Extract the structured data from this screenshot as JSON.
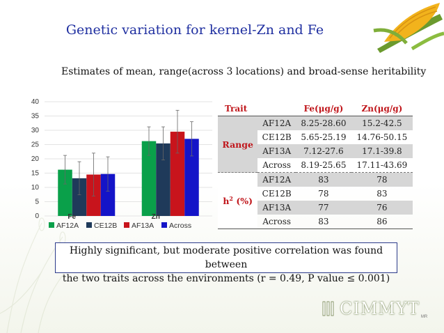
{
  "title": "Genetic variation for kernel-Zn and Fe",
  "subtitle": "Estimates of mean, range(across 3 locations) and broad-sense  heritability",
  "chart_data": {
    "type": "bar",
    "categories": [
      "Fe",
      "Zn"
    ],
    "series": [
      {
        "name": "AF12A",
        "color": "#0aa04a",
        "values": [
          16.2,
          26.2
        ],
        "error": [
          5.0,
          5.0
        ]
      },
      {
        "name": "CE12B",
        "color": "#1f3a5a",
        "values": [
          13.2,
          25.4
        ],
        "error": [
          5.8,
          5.8
        ]
      },
      {
        "name": "AF13A",
        "color": "#c8141c",
        "values": [
          14.5,
          29.5
        ],
        "error": [
          7.5,
          7.5
        ]
      },
      {
        "name": "Across",
        "color": "#1414c8",
        "values": [
          14.7,
          27.0
        ],
        "error": [
          6.0,
          6.0
        ]
      }
    ],
    "ylim": [
      0,
      40
    ],
    "yticks": [
      "0",
      "5",
      "10",
      "15",
      "20",
      "25",
      "30",
      "35",
      "40"
    ],
    "grid": true,
    "legend_position": "bottom"
  },
  "table": {
    "header": {
      "trait": "Trait",
      "fe": "Fe(μg/g)",
      "zn": "Zn(μg/g)"
    },
    "sections": [
      {
        "label": "Range",
        "rows": [
          {
            "loc": "AF12A",
            "fe": "8.25-28.60",
            "zn": "15.2-42.5"
          },
          {
            "loc": "CE12B",
            "fe": "5.65-25.19",
            "zn": "14.76-50.15"
          },
          {
            "loc": "AF13A",
            "fe": "7.12-27.6",
            "zn": "17.1-39.8"
          },
          {
            "loc": "Across",
            "fe": "8.19-25.65",
            "zn": "17.11-43.69"
          }
        ]
      },
      {
        "label_main": "h",
        "label_sup": "2",
        "label_rest": " (%)",
        "rows": [
          {
            "loc": "AF12A",
            "fe": "83",
            "zn": "78"
          },
          {
            "loc": "CE12B",
            "fe": "78",
            "zn": "83"
          },
          {
            "loc": "AF13A",
            "fe": "77",
            "zn": "76"
          },
          {
            "loc": "Across",
            "fe": "83",
            "zn": "86"
          }
        ]
      }
    ]
  },
  "note": {
    "line1": "Highly significant, but moderate positive correlation was found between",
    "line2": "the two traits across the environments (r = 0.49, P value ≤ 0.001)"
  },
  "logo": {
    "text": "CIMMYT",
    "tm": "MR"
  },
  "icons": {
    "corn": "corn-cob-icon",
    "logo_mark": "wheat-mark-icon"
  }
}
